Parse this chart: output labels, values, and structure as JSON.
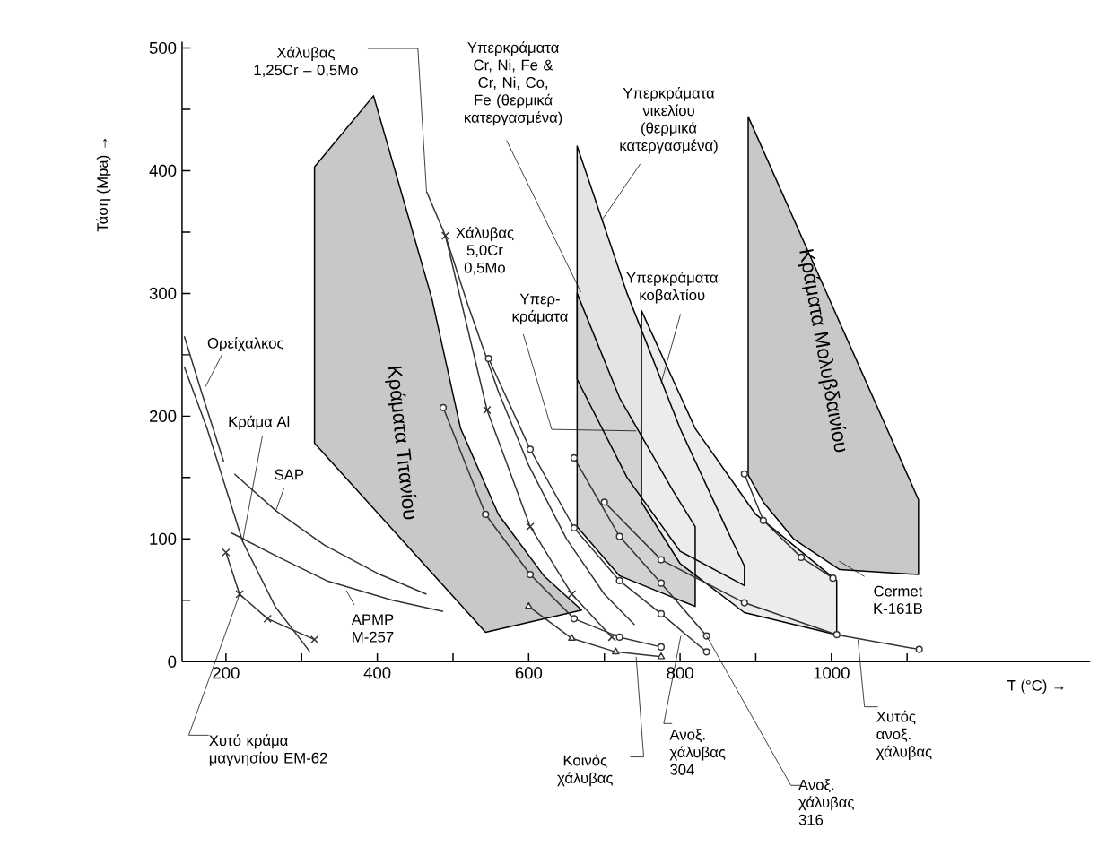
{
  "chart_data": {
    "type": "line",
    "xlabel": "T (°C) →",
    "ylabel": "Τάση (Mpa) →",
    "xlim": [
      142,
      1342
    ],
    "ylim": [
      0,
      505
    ],
    "xticks": [
      200,
      {
        "value": 300,
        "label": null
      },
      400,
      {
        "value": 500,
        "label": null
      },
      600,
      {
        "value": 700,
        "label": null
      },
      800,
      {
        "value": 900,
        "label": null
      },
      1000,
      {
        "value": 1100,
        "label": null
      }
    ],
    "yticks": [
      0,
      {
        "value": 50,
        "label": null
      },
      100,
      {
        "value": 150,
        "label": null
      },
      200,
      {
        "value": 250,
        "label": null
      },
      300,
      {
        "value": 350,
        "label": null
      },
      400,
      {
        "value": 450,
        "label": null
      },
      500
    ],
    "series": [
      {
        "type": "area",
        "name": "Κράματα Τιτανίου",
        "color": "#c8c8c8",
        "x": [
          317,
          395,
          472,
          510,
          560,
          620,
          670,
          543,
          317
        ],
        "values": [
          403,
          461,
          296,
          190,
          120,
          70,
          42,
          24,
          178
        ]
      },
      {
        "type": "area",
        "name": "Κράματα Μολυβδαινίου",
        "color": "#c8c8c8",
        "x": [
          890,
          1115,
          1115,
          1011,
          950,
          910,
          890
        ],
        "values": [
          444,
          132,
          71,
          75,
          100,
          130,
          152
        ]
      },
      {
        "type": "area",
        "color": "#e4e4e4",
        "x": [
          664,
          730,
          800,
          860,
          885,
          885,
          800,
          730,
          664
        ],
        "values": [
          420,
          300,
          190,
          110,
          78,
          62,
          90,
          150,
          230
        ]
      },
      {
        "type": "area",
        "color": "#d2d2d2",
        "x": [
          664,
          720,
          790,
          820,
          820,
          720,
          664
        ],
        "values": [
          300,
          215,
          140,
          110,
          45,
          70,
          110
        ]
      },
      {
        "type": "area",
        "color": "#ececec",
        "x": [
          749,
          820,
          900,
          1007,
          1007,
          885,
          800,
          749
        ],
        "values": [
          286,
          190,
          120,
          66,
          22,
          40,
          80,
          130
        ]
      },
      {
        "color": "#333333",
        "marker": "none",
        "x": [
          145,
          170,
          197
        ],
        "values": [
          265,
          215,
          163
        ]
      },
      {
        "color": "#333333",
        "marker": "none",
        "x": [
          145,
          175,
          222,
          265,
          311
        ],
        "values": [
          240,
          190,
          98,
          45,
          8
        ]
      },
      {
        "color": "#333333",
        "marker": "none",
        "x": [
          211,
          266,
          330,
          400,
          465
        ],
        "values": [
          153,
          123,
          95,
          72,
          55
        ]
      },
      {
        "color": "#333333",
        "marker": "none",
        "x": [
          207,
          270,
          333,
          420,
          487
        ],
        "values": [
          105,
          85,
          66,
          50,
          41
        ]
      },
      {
        "color": "#333333",
        "marker": "cross",
        "x": [
          200,
          218,
          255,
          317
        ],
        "values": [
          89,
          55,
          35,
          18
        ]
      },
      {
        "color": "#333333",
        "marker": "none",
        "x": [
          465,
          490,
          520,
          560,
          600,
          650,
          700,
          740
        ],
        "values": [
          383,
          347,
          290,
          220,
          160,
          100,
          55,
          30
        ]
      },
      {
        "color": "#333333",
        "marker": "cross",
        "x": [
          490,
          545,
          602,
          657,
          710
        ],
        "values": [
          347,
          205,
          110,
          55,
          20
        ]
      },
      {
        "color": "#333333",
        "marker": "circle",
        "x": [
          487,
          543,
          602,
          660,
          720,
          775
        ],
        "values": [
          207,
          120,
          71,
          35,
          20,
          12
        ]
      },
      {
        "color": "#333333",
        "marker": "circle",
        "x": [
          547,
          602,
          660,
          720,
          775,
          835
        ],
        "values": [
          247,
          173,
          109,
          66,
          39,
          8
        ]
      },
      {
        "color": "#333333",
        "marker": "circle",
        "x": [
          660,
          720,
          775,
          835
        ],
        "values": [
          166,
          102,
          64,
          21
        ]
      },
      {
        "color": "#333333",
        "marker": "triangle",
        "x": [
          600,
          657,
          715,
          775
        ],
        "values": [
          45,
          19,
          8,
          4
        ]
      },
      {
        "color": "#333333",
        "marker": "circle",
        "x": [
          700,
          775,
          885,
          1007,
          1116
        ],
        "values": [
          130,
          83,
          48,
          22,
          10
        ]
      },
      {
        "color": "#333333",
        "marker": "circle",
        "x": [
          885,
          910,
          960,
          1002
        ],
        "values": [
          153,
          115,
          85,
          68
        ]
      }
    ],
    "annotations": [
      {
        "text": "Χάλυβας 1,25Cr – 0,5Mo",
        "x": 465,
        "y": 383
      },
      {
        "text": "Υπερκράματα Cr, Ni, Fe & Cr, Ni, Co, Fe (θερμικά κατεργασμένα)",
        "x": 669,
        "y": 301
      },
      {
        "text": "Υπερκράματα νικελίου (θερμικά κατεργασμένα)",
        "x": 697,
        "y": 360
      },
      "Χάλυβας 5,0Cr 0,5Mo",
      {
        "text": "Υπερ- κράματα",
        "x": 742,
        "y": 188
      },
      {
        "text": "Υπερκράματα κοβαλτίου",
        "x": 775,
        "y": 227
      },
      {
        "text": "Ορείχαλκος",
        "x": 173,
        "y": 224
      },
      {
        "text": "Κράμα Al",
        "x": 222,
        "y": 98
      },
      {
        "text": "SAP",
        "x": 266,
        "y": 123
      },
      {
        "text": "APMP M-257",
        "x": 359,
        "y": 58
      },
      {
        "text": "Χυτό κράμα μαγνησίου EM-62",
        "x": 218,
        "y": 55
      },
      {
        "text": "Κοινός χάλυβας",
        "x": 742,
        "y": 4
      },
      {
        "text": "Ανοξ. χάλυβας 304",
        "x": 801,
        "y": 21
      },
      {
        "text": "Ανοξ. χάλυβας 316",
        "x": 835,
        "y": 21
      },
      {
        "text": "Χυτός ανοξ. χάλυβας",
        "x": 1035,
        "y": 18
      },
      {
        "text": "Cermet K-161B",
        "x": 1010,
        "y": 82
      }
    ]
  }
}
